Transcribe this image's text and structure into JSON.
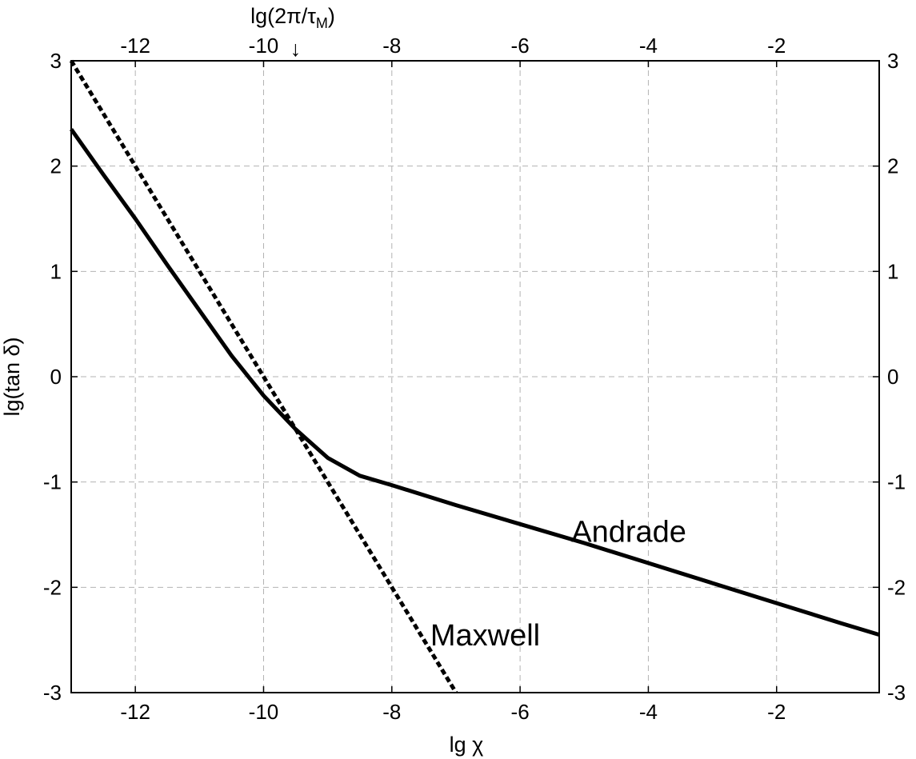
{
  "chart_data": {
    "type": "line",
    "title": "",
    "xlabel": "lg χ",
    "ylabel": "lg(tan δ)",
    "top_axis_label": "lg(2π/τ",
    "top_axis_label_sub": "M",
    "top_axis_label_close": ")",
    "top_axis_marker": "↓",
    "top_axis_marker_x": -9.5,
    "xlim": [
      -13,
      -0.4
    ],
    "ylim": [
      -3,
      3
    ],
    "xticks": [
      -12,
      -10,
      -8,
      -6,
      -4,
      -2
    ],
    "xtick_labels": [
      "-12",
      "-10",
      "-8",
      "-6",
      "-4",
      "-2"
    ],
    "yticks": [
      -3,
      -2,
      -1,
      0,
      1,
      2,
      3
    ],
    "ytick_labels": [
      "-3",
      "-2",
      "-1",
      "0",
      "1",
      "2",
      "3"
    ],
    "grid": true,
    "series": [
      {
        "name": "Andrade",
        "style": "solid",
        "color": "#000000",
        "x": [
          -13.0,
          -12.5,
          -12.0,
          -11.5,
          -11.0,
          -10.5,
          -10.0,
          -9.5,
          -9.0,
          -8.5,
          -8.0,
          -7.0,
          -6.0,
          -5.0,
          -4.0,
          -3.0,
          -2.0,
          -1.0,
          -0.4
        ],
        "y": [
          2.35,
          1.92,
          1.5,
          1.06,
          0.63,
          0.2,
          -0.18,
          -0.5,
          -0.77,
          -0.94,
          -1.03,
          -1.22,
          -1.4,
          -1.58,
          -1.77,
          -1.96,
          -2.15,
          -2.34,
          -2.45
        ]
      },
      {
        "name": "Maxwell",
        "style": "dashed",
        "color": "#000000",
        "x": [
          -13.0,
          -7.0
        ],
        "y": [
          3.0,
          -3.0
        ]
      }
    ],
    "annotations": [
      {
        "text": "Andrade",
        "x": -5.2,
        "y": -1.57
      },
      {
        "text": "Maxwell",
        "x": -7.4,
        "y": -2.55
      }
    ]
  }
}
